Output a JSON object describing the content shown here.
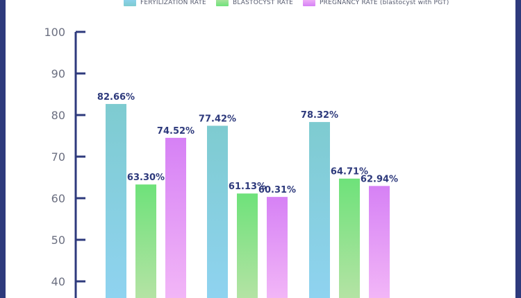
{
  "chart_data": {
    "type": "bar",
    "title": "",
    "xlabel": "",
    "ylabel": "",
    "ylim": [
      32,
      100
    ],
    "yticks": [
      40,
      50,
      60,
      70,
      80,
      90,
      100
    ],
    "grid": false,
    "legend_position": "top",
    "groups": 3,
    "series": [
      {
        "name": "FERYILIZATION RATE",
        "values": [
          82.66,
          77.42,
          78.32
        ],
        "labels": [
          "82.66%",
          "77.42%",
          "78.32%"
        ],
        "color_top": "#7ecbd0",
        "color_bottom": "#8fd3f0"
      },
      {
        "name": "BLASTOCYST RATE",
        "values": [
          63.3,
          61.13,
          64.71
        ],
        "labels": [
          "63.30%",
          "61.13%",
          "64.71%"
        ],
        "color_top": "#6ee27a",
        "color_bottom": "#b4e3a4"
      },
      {
        "name": "PREGNANCY RATE (blastocyst with PGT)",
        "values": [
          74.52,
          60.31,
          62.94
        ],
        "labels": [
          "74.52%",
          "60.31%",
          "62.94%"
        ],
        "color_top": "#d681f5",
        "color_bottom": "#f2b6f7"
      }
    ]
  },
  "colors": {
    "frame": "#2e3a7c",
    "axis": "#2e3a7c",
    "tick_label": "#6b6f80",
    "value_label": "#2e3a7c"
  }
}
